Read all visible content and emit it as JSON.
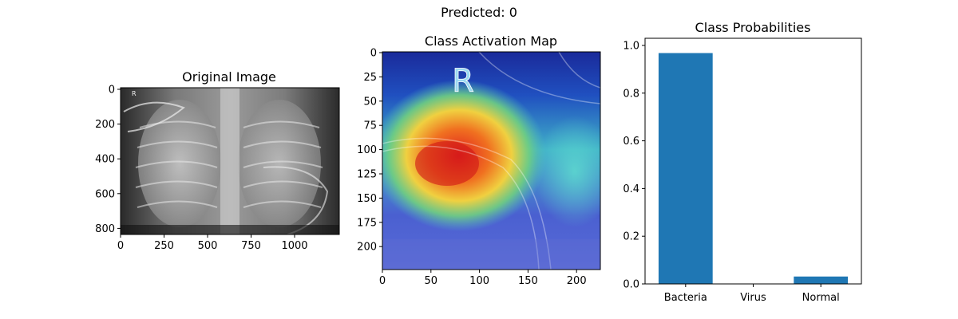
{
  "figure": {
    "suptitle": "Predicted: 0"
  },
  "original_image": {
    "title": "Original Image",
    "image_marker": "R",
    "x_ticks": [
      "0",
      "250",
      "500",
      "750",
      "1000"
    ],
    "y_ticks": [
      "0",
      "200",
      "400",
      "600",
      "800"
    ]
  },
  "cam": {
    "title": "Class Activation Map",
    "image_marker": "R",
    "x_ticks": [
      "0",
      "50",
      "100",
      "150",
      "200"
    ],
    "y_ticks": [
      "0",
      "25",
      "50",
      "75",
      "100",
      "125",
      "150",
      "175",
      "200"
    ]
  },
  "chart_data": {
    "type": "bar",
    "title": "Class Probabilities",
    "categories": [
      "Bacteria",
      "Virus",
      "Normal"
    ],
    "values": [
      0.968,
      0.001,
      0.031
    ],
    "ylim": [
      0,
      1.03
    ],
    "y_ticks": [
      0.0,
      0.2,
      0.4,
      0.6,
      0.8,
      1.0
    ],
    "bar_color": "#1f77b4",
    "xlabel": "",
    "ylabel": ""
  }
}
